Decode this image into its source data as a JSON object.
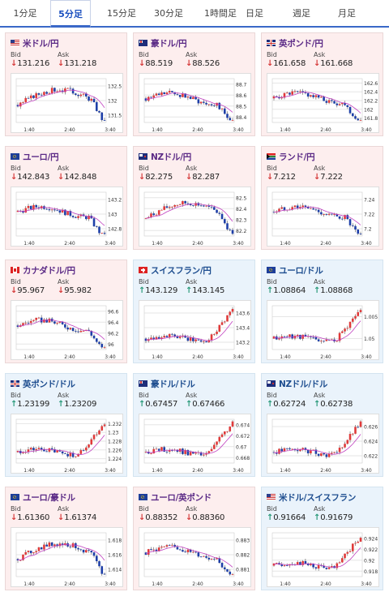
{
  "tabs": [
    {
      "label": "1分足"
    },
    {
      "label": "5分足"
    },
    {
      "label": "15分足"
    },
    {
      "label": "30分足"
    },
    {
      "label": "1時間足"
    },
    {
      "label": "日足"
    },
    {
      "label": "週足"
    },
    {
      "label": "月足"
    }
  ],
  "active_tab": 1,
  "labels": {
    "bid": "Bid",
    "ask": "Ask"
  },
  "colors": {
    "down_bg": "#fdeeee",
    "up_bg": "#eaf3fb",
    "down": "#d63a3a",
    "up": "#2a9a7a",
    "ma_line": "#c040c0"
  },
  "cards": [
    {
      "pair": "米ドル/円",
      "flag": "us-flag-icon",
      "dir": "down",
      "bid": "131.216",
      "ask": "131.218",
      "ticks": [
        "132.5",
        "132",
        "131.5"
      ],
      "x_labels": [
        "1:40",
        "2:40",
        "3:40"
      ]
    },
    {
      "pair": "豪ドル/円",
      "flag": "au-flag-icon",
      "dir": "down",
      "bid": "88.519",
      "ask": "88.526",
      "ticks": [
        "88.7",
        "88.6",
        "88.5",
        "88.4"
      ],
      "x_labels": [
        "1:40",
        "2:40",
        "3:40"
      ]
    },
    {
      "pair": "英ポンド/円",
      "flag": "uk-flag-icon",
      "dir": "down",
      "bid": "161.658",
      "ask": "161.668",
      "ticks": [
        "162.6",
        "162.4",
        "162.2",
        "162",
        "161.8"
      ],
      "x_labels": [
        "1:40",
        "2:40",
        "3:40"
      ]
    },
    {
      "pair": "ユーロ/円",
      "flag": "eu-flag-icon",
      "dir": "down",
      "bid": "142.843",
      "ask": "142.848",
      "ticks": [
        "143.2",
        "143",
        "142.8"
      ],
      "x_labels": [
        "1:40",
        "2:40",
        "3:40"
      ]
    },
    {
      "pair": "NZドル/円",
      "flag": "nz-flag-icon",
      "dir": "down",
      "bid": "82.275",
      "ask": "82.287",
      "ticks": [
        "82.5",
        "82.4",
        "82.3",
        "82.2"
      ],
      "x_labels": [
        "1:40",
        "2:40",
        "3:40"
      ]
    },
    {
      "pair": "ランド/円",
      "flag": "za-flag-icon",
      "dir": "down",
      "bid": "7.212",
      "ask": "7.222",
      "ticks": [
        "7.24",
        "7.22",
        "7.2"
      ],
      "x_labels": [
        "1:40",
        "2:40",
        "3:40"
      ]
    },
    {
      "pair": "カナダドル/円",
      "flag": "ca-flag-icon",
      "dir": "down",
      "bid": "95.967",
      "ask": "95.982",
      "ticks": [
        "96.6",
        "96.4",
        "96.2",
        "96"
      ],
      "x_labels": [
        "1:40",
        "2:40",
        "3:40"
      ]
    },
    {
      "pair": "スイスフラン/円",
      "flag": "ch-flag-icon",
      "dir": "up",
      "bid": "143.129",
      "ask": "143.145",
      "ticks": [
        "143.6",
        "143.4",
        "143.2"
      ],
      "x_labels": [
        "1:40",
        "2:40",
        "3:40"
      ]
    },
    {
      "pair": "ユーロ/ドル",
      "flag": "eu-us-flag-icon",
      "dir": "up",
      "bid": "1.08864",
      "ask": "1.08868",
      "ticks": [
        "1.005",
        "1.05"
      ],
      "x_labels": [
        "1:40",
        "2:40",
        "3:40"
      ]
    },
    {
      "pair": "英ポンド/ドル",
      "flag": "uk-us-flag-icon",
      "dir": "up",
      "bid": "1.23199",
      "ask": "1.23209",
      "ticks": [
        "1.232",
        "1.23",
        "1.228",
        "1.226",
        "1.224"
      ],
      "x_labels": [
        "1:40",
        "2:40",
        "3:40"
      ]
    },
    {
      "pair": "豪ドル/ドル",
      "flag": "au-us-flag-icon",
      "dir": "up",
      "bid": "0.67457",
      "ask": "0.67466",
      "ticks": [
        "0.674",
        "0.672",
        "0.67",
        "0.668"
      ],
      "x_labels": [
        "1:40",
        "2:40",
        "3:40"
      ]
    },
    {
      "pair": "NZドル/ドル",
      "flag": "nz-us-flag-icon",
      "dir": "up",
      "bid": "0.62724",
      "ask": "0.62738",
      "ticks": [
        "0.626",
        "0.624",
        "0.622"
      ],
      "x_labels": [
        "1:40",
        "2:40",
        "3:40"
      ]
    },
    {
      "pair": "ユーロ/豪ドル",
      "flag": "eu-au-flag-icon",
      "dir": "down",
      "bid": "1.61360",
      "ask": "1.61374",
      "ticks": [
        "1.618",
        "1.616",
        "1.614"
      ],
      "x_labels": [
        "1:40",
        "2:40",
        "3:40"
      ]
    },
    {
      "pair": "ユーロ/英ポンド",
      "flag": "eu-uk-flag-icon",
      "dir": "down",
      "bid": "0.88352",
      "ask": "0.88360",
      "ticks": [
        "0.883",
        "0.882",
        "0.881"
      ],
      "x_labels": [
        "1:40",
        "2:40",
        "3:40"
      ]
    },
    {
      "pair": "米ドル/スイスフラン",
      "flag": "us-ch-flag-icon",
      "dir": "up",
      "bid": "0.91664",
      "ask": "0.91679",
      "ticks": [
        "0.924",
        "0.922",
        "0.92",
        "0.918"
      ],
      "x_labels": [
        "1:40",
        "2:40",
        "3:40"
      ]
    }
  ]
}
